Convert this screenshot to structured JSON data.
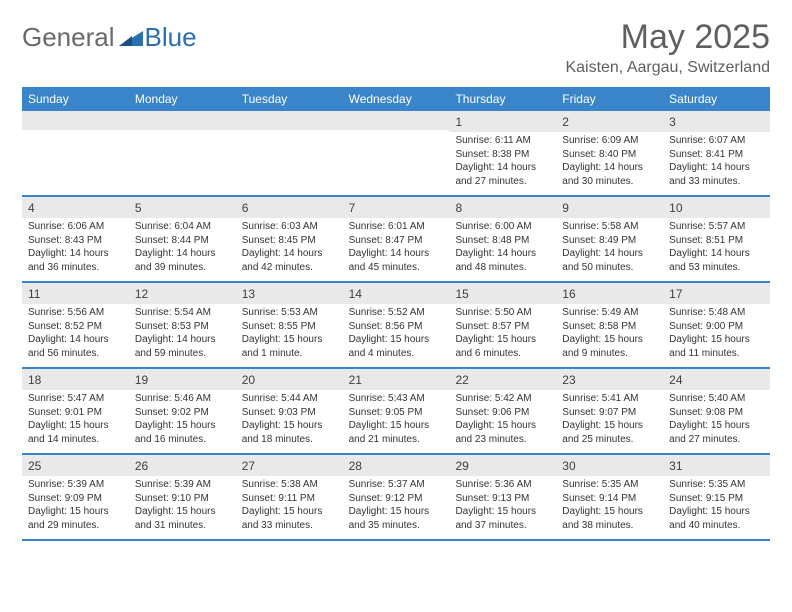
{
  "logo": {
    "general": "General",
    "blue": "Blue"
  },
  "header": {
    "month_title": "May 2025",
    "location": "Kaisten, Aargau, Switzerland"
  },
  "colors": {
    "header_bg": "#3a85c9",
    "header_text": "#ffffff",
    "daynum_bg": "#e9e9e9",
    "row_border": "#3a85c9",
    "body_text": "#343434",
    "title_text": "#5f5f5f",
    "logo_gray": "#6a6a6a",
    "logo_blue": "#2b6fb0"
  },
  "typography": {
    "month_title_size": 34,
    "location_size": 16,
    "day_header_size": 12,
    "day_number_size": 12,
    "cell_text_size": 10
  },
  "day_names": [
    "Sunday",
    "Monday",
    "Tuesday",
    "Wednesday",
    "Thursday",
    "Friday",
    "Saturday"
  ],
  "weeks": [
    [
      null,
      null,
      null,
      null,
      {
        "date": "1",
        "sunrise": "Sunrise: 6:11 AM",
        "sunset": "Sunset: 8:38 PM",
        "daylight": "Daylight: 14 hours and 27 minutes."
      },
      {
        "date": "2",
        "sunrise": "Sunrise: 6:09 AM",
        "sunset": "Sunset: 8:40 PM",
        "daylight": "Daylight: 14 hours and 30 minutes."
      },
      {
        "date": "3",
        "sunrise": "Sunrise: 6:07 AM",
        "sunset": "Sunset: 8:41 PM",
        "daylight": "Daylight: 14 hours and 33 minutes."
      }
    ],
    [
      {
        "date": "4",
        "sunrise": "Sunrise: 6:06 AM",
        "sunset": "Sunset: 8:43 PM",
        "daylight": "Daylight: 14 hours and 36 minutes."
      },
      {
        "date": "5",
        "sunrise": "Sunrise: 6:04 AM",
        "sunset": "Sunset: 8:44 PM",
        "daylight": "Daylight: 14 hours and 39 minutes."
      },
      {
        "date": "6",
        "sunrise": "Sunrise: 6:03 AM",
        "sunset": "Sunset: 8:45 PM",
        "daylight": "Daylight: 14 hours and 42 minutes."
      },
      {
        "date": "7",
        "sunrise": "Sunrise: 6:01 AM",
        "sunset": "Sunset: 8:47 PM",
        "daylight": "Daylight: 14 hours and 45 minutes."
      },
      {
        "date": "8",
        "sunrise": "Sunrise: 6:00 AM",
        "sunset": "Sunset: 8:48 PM",
        "daylight": "Daylight: 14 hours and 48 minutes."
      },
      {
        "date": "9",
        "sunrise": "Sunrise: 5:58 AM",
        "sunset": "Sunset: 8:49 PM",
        "daylight": "Daylight: 14 hours and 50 minutes."
      },
      {
        "date": "10",
        "sunrise": "Sunrise: 5:57 AM",
        "sunset": "Sunset: 8:51 PM",
        "daylight": "Daylight: 14 hours and 53 minutes."
      }
    ],
    [
      {
        "date": "11",
        "sunrise": "Sunrise: 5:56 AM",
        "sunset": "Sunset: 8:52 PM",
        "daylight": "Daylight: 14 hours and 56 minutes."
      },
      {
        "date": "12",
        "sunrise": "Sunrise: 5:54 AM",
        "sunset": "Sunset: 8:53 PM",
        "daylight": "Daylight: 14 hours and 59 minutes."
      },
      {
        "date": "13",
        "sunrise": "Sunrise: 5:53 AM",
        "sunset": "Sunset: 8:55 PM",
        "daylight": "Daylight: 15 hours and 1 minute."
      },
      {
        "date": "14",
        "sunrise": "Sunrise: 5:52 AM",
        "sunset": "Sunset: 8:56 PM",
        "daylight": "Daylight: 15 hours and 4 minutes."
      },
      {
        "date": "15",
        "sunrise": "Sunrise: 5:50 AM",
        "sunset": "Sunset: 8:57 PM",
        "daylight": "Daylight: 15 hours and 6 minutes."
      },
      {
        "date": "16",
        "sunrise": "Sunrise: 5:49 AM",
        "sunset": "Sunset: 8:58 PM",
        "daylight": "Daylight: 15 hours and 9 minutes."
      },
      {
        "date": "17",
        "sunrise": "Sunrise: 5:48 AM",
        "sunset": "Sunset: 9:00 PM",
        "daylight": "Daylight: 15 hours and 11 minutes."
      }
    ],
    [
      {
        "date": "18",
        "sunrise": "Sunrise: 5:47 AM",
        "sunset": "Sunset: 9:01 PM",
        "daylight": "Daylight: 15 hours and 14 minutes."
      },
      {
        "date": "19",
        "sunrise": "Sunrise: 5:46 AM",
        "sunset": "Sunset: 9:02 PM",
        "daylight": "Daylight: 15 hours and 16 minutes."
      },
      {
        "date": "20",
        "sunrise": "Sunrise: 5:44 AM",
        "sunset": "Sunset: 9:03 PM",
        "daylight": "Daylight: 15 hours and 18 minutes."
      },
      {
        "date": "21",
        "sunrise": "Sunrise: 5:43 AM",
        "sunset": "Sunset: 9:05 PM",
        "daylight": "Daylight: 15 hours and 21 minutes."
      },
      {
        "date": "22",
        "sunrise": "Sunrise: 5:42 AM",
        "sunset": "Sunset: 9:06 PM",
        "daylight": "Daylight: 15 hours and 23 minutes."
      },
      {
        "date": "23",
        "sunrise": "Sunrise: 5:41 AM",
        "sunset": "Sunset: 9:07 PM",
        "daylight": "Daylight: 15 hours and 25 minutes."
      },
      {
        "date": "24",
        "sunrise": "Sunrise: 5:40 AM",
        "sunset": "Sunset: 9:08 PM",
        "daylight": "Daylight: 15 hours and 27 minutes."
      }
    ],
    [
      {
        "date": "25",
        "sunrise": "Sunrise: 5:39 AM",
        "sunset": "Sunset: 9:09 PM",
        "daylight": "Daylight: 15 hours and 29 minutes."
      },
      {
        "date": "26",
        "sunrise": "Sunrise: 5:39 AM",
        "sunset": "Sunset: 9:10 PM",
        "daylight": "Daylight: 15 hours and 31 minutes."
      },
      {
        "date": "27",
        "sunrise": "Sunrise: 5:38 AM",
        "sunset": "Sunset: 9:11 PM",
        "daylight": "Daylight: 15 hours and 33 minutes."
      },
      {
        "date": "28",
        "sunrise": "Sunrise: 5:37 AM",
        "sunset": "Sunset: 9:12 PM",
        "daylight": "Daylight: 15 hours and 35 minutes."
      },
      {
        "date": "29",
        "sunrise": "Sunrise: 5:36 AM",
        "sunset": "Sunset: 9:13 PM",
        "daylight": "Daylight: 15 hours and 37 minutes."
      },
      {
        "date": "30",
        "sunrise": "Sunrise: 5:35 AM",
        "sunset": "Sunset: 9:14 PM",
        "daylight": "Daylight: 15 hours and 38 minutes."
      },
      {
        "date": "31",
        "sunrise": "Sunrise: 5:35 AM",
        "sunset": "Sunset: 9:15 PM",
        "daylight": "Daylight: 15 hours and 40 minutes."
      }
    ]
  ]
}
